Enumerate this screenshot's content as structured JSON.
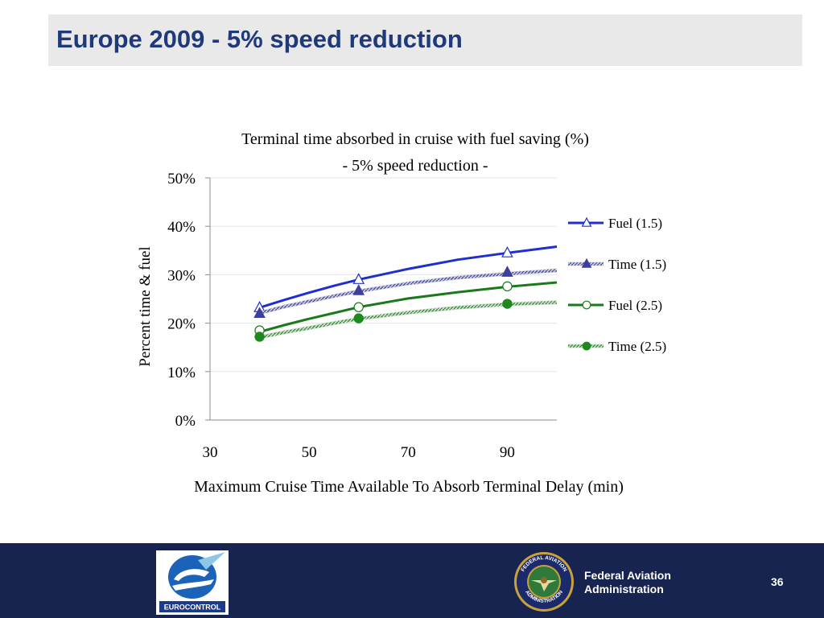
{
  "slide": {
    "title": "Europe 2009 - 5% speed reduction",
    "page_number": "36"
  },
  "footer": {
    "eurocontrol_label": "EUROCONTROL",
    "faa_line1": "Federal Aviation",
    "faa_line2": "Administration",
    "faa_seal_top": "FEDERAL AVIATION",
    "faa_seal_bottom": "ADMINISTRATION"
  },
  "colors": {
    "title_text": "#1f3a7a",
    "title_bar": "#e9e9e9",
    "footer": "#17244f",
    "fuel_1_5": "#1f2ed1",
    "time_1_5": "#3d3f9e",
    "fuel_2_5": "#1a7a1a",
    "time_2_5": "#1e8a1e"
  },
  "chart_data": {
    "type": "scatter",
    "title": "Terminal time absorbed in cruise with fuel saving (%)",
    "subtitle": "- 5% speed reduction -",
    "xlabel": "Maximum Cruise Time Available To Absorb Terminal Delay (min)",
    "ylabel": "Percent time & fuel",
    "xlim": [
      30,
      100
    ],
    "ylim": [
      0,
      0.5
    ],
    "x_ticks": [
      30,
      50,
      70,
      90
    ],
    "y_ticks": [
      0,
      0.1,
      0.2,
      0.3,
      0.4,
      0.5
    ],
    "y_tick_labels": [
      "0%",
      "10%",
      "20%",
      "30%",
      "40%",
      "50%"
    ],
    "grid": true,
    "legend_position": "right",
    "series": [
      {
        "name": "Fuel (1.5)",
        "marker": "triangle-open",
        "line_style": "solid",
        "points": [
          [
            40,
            0.232
          ],
          [
            60,
            0.29
          ],
          [
            90,
            0.345
          ]
        ],
        "trend": [
          [
            40,
            0.232
          ],
          [
            45,
            0.248
          ],
          [
            50,
            0.263
          ],
          [
            55,
            0.277
          ],
          [
            60,
            0.29
          ],
          [
            70,
            0.312
          ],
          [
            80,
            0.331
          ],
          [
            90,
            0.345
          ],
          [
            100,
            0.358
          ]
        ]
      },
      {
        "name": "Time (1.5)",
        "marker": "triangle-filled",
        "line_style": "hatched",
        "points": [
          [
            40,
            0.22
          ],
          [
            60,
            0.267
          ],
          [
            90,
            0.305
          ]
        ],
        "trend": [
          [
            40,
            0.221
          ],
          [
            45,
            0.234
          ],
          [
            50,
            0.245
          ],
          [
            55,
            0.256
          ],
          [
            60,
            0.266
          ],
          [
            70,
            0.282
          ],
          [
            80,
            0.294
          ],
          [
            90,
            0.302
          ],
          [
            100,
            0.309
          ]
        ]
      },
      {
        "name": "Fuel (2.5)",
        "marker": "circle-open",
        "line_style": "solid",
        "points": [
          [
            40,
            0.185
          ],
          [
            60,
            0.233
          ],
          [
            90,
            0.276
          ]
        ],
        "trend": [
          [
            40,
            0.182
          ],
          [
            45,
            0.196
          ],
          [
            50,
            0.209
          ],
          [
            55,
            0.221
          ],
          [
            60,
            0.233
          ],
          [
            70,
            0.251
          ],
          [
            80,
            0.264
          ],
          [
            90,
            0.275
          ],
          [
            100,
            0.284
          ]
        ]
      },
      {
        "name": "Time (2.5)",
        "marker": "circle-filled",
        "line_style": "hatched",
        "points": [
          [
            40,
            0.172
          ],
          [
            60,
            0.21
          ],
          [
            90,
            0.24
          ]
        ],
        "trend": [
          [
            40,
            0.171
          ],
          [
            45,
            0.181
          ],
          [
            50,
            0.19
          ],
          [
            55,
            0.2
          ],
          [
            60,
            0.209
          ],
          [
            70,
            0.222
          ],
          [
            80,
            0.232
          ],
          [
            90,
            0.239
          ],
          [
            100,
            0.243
          ]
        ]
      }
    ]
  }
}
